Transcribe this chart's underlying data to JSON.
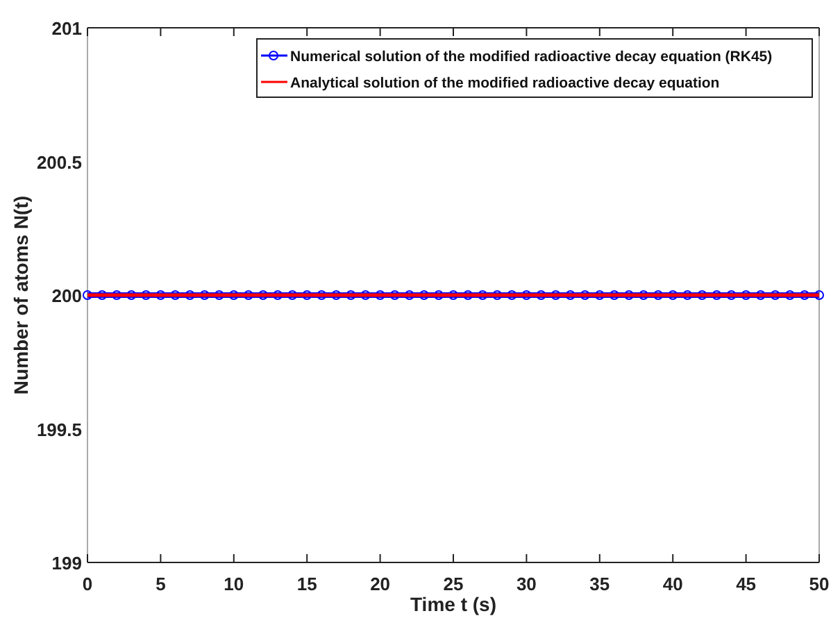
{
  "chart_data": {
    "type": "line",
    "xlabel": "Time t (s)",
    "ylabel": "Number of atoms N(t)",
    "x": [
      0,
      1,
      2,
      3,
      4,
      5,
      6,
      7,
      8,
      9,
      10,
      11,
      12,
      13,
      14,
      15,
      16,
      17,
      18,
      19,
      20,
      21,
      22,
      23,
      24,
      25,
      26,
      27,
      28,
      29,
      30,
      31,
      32,
      33,
      34,
      35,
      36,
      37,
      38,
      39,
      40,
      41,
      42,
      43,
      44,
      45,
      46,
      47,
      48,
      49,
      50
    ],
    "series": [
      {
        "name": "Numerical solution of the modified radioactive decay equation (RK45)",
        "color": "#0000ff",
        "marker": "circle",
        "values": [
          200,
          200,
          200,
          200,
          200,
          200,
          200,
          200,
          200,
          200,
          200,
          200,
          200,
          200,
          200,
          200,
          200,
          200,
          200,
          200,
          200,
          200,
          200,
          200,
          200,
          200,
          200,
          200,
          200,
          200,
          200,
          200,
          200,
          200,
          200,
          200,
          200,
          200,
          200,
          200,
          200,
          200,
          200,
          200,
          200,
          200,
          200,
          200,
          200,
          200,
          200
        ]
      },
      {
        "name": "Analytical solution of the modified radioactive decay equation",
        "color": "#ff0000",
        "marker": "none",
        "values": [
          200,
          200,
          200,
          200,
          200,
          200,
          200,
          200,
          200,
          200,
          200,
          200,
          200,
          200,
          200,
          200,
          200,
          200,
          200,
          200,
          200,
          200,
          200,
          200,
          200,
          200,
          200,
          200,
          200,
          200,
          200,
          200,
          200,
          200,
          200,
          200,
          200,
          200,
          200,
          200,
          200,
          200,
          200,
          200,
          200,
          200,
          200,
          200,
          200,
          200,
          200
        ]
      }
    ],
    "xlim": [
      0,
      50
    ],
    "xticks": [
      0,
      5,
      10,
      15,
      20,
      25,
      30,
      35,
      40,
      45,
      50
    ],
    "ylim": [
      199,
      201
    ],
    "yticks": [
      199,
      199.5,
      200,
      200.5,
      201
    ],
    "legend": "top right",
    "grid": false,
    "line_style": "solid"
  }
}
